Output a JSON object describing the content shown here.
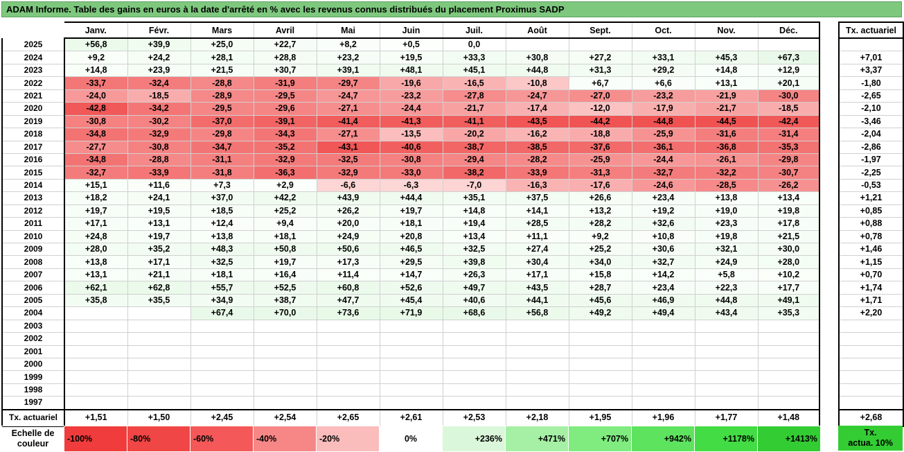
{
  "title": "ADAM Informe. Table des gains en euros à la date d'arrêté en % avec les revenus connus distribués du placement Proximus SADP",
  "months": [
    "Janv.",
    "Févr.",
    "Mars",
    "Avril",
    "Mai",
    "Juin",
    "Juil.",
    "Août",
    "Sept.",
    "Oct.",
    "Nov.",
    "Déc."
  ],
  "tx_header": "Tx. actuariel",
  "rows": [
    {
      "year": "2025",
      "vals": [
        "+56,8",
        "+39,9",
        "+25,0",
        "+22,7",
        "+8,2",
        "+0,5",
        "0,0",
        "",
        "",
        "",
        "",
        ""
      ],
      "tx": ""
    },
    {
      "year": "2024",
      "vals": [
        "+9,2",
        "+24,2",
        "+28,1",
        "+28,8",
        "+23,2",
        "+19,5",
        "+33,3",
        "+30,8",
        "+27,2",
        "+33,1",
        "+45,3",
        "+67,3"
      ],
      "tx": "+7,01"
    },
    {
      "year": "2023",
      "vals": [
        "+14,8",
        "+23,9",
        "+21,5",
        "+30,7",
        "+39,1",
        "+48,1",
        "+45,1",
        "+44,8",
        "+31,3",
        "+29,2",
        "+14,8",
        "+12,9"
      ],
      "tx": "+3,37"
    },
    {
      "year": "2022",
      "vals": [
        "-33,7",
        "-32,4",
        "-28,8",
        "-31,9",
        "-29,7",
        "-19,6",
        "-16,5",
        "-10,8",
        "+6,7",
        "+6,6",
        "+13,1",
        "+20,1"
      ],
      "tx": "-1,80"
    },
    {
      "year": "2021",
      "vals": [
        "-24,0",
        "-18,5",
        "-28,9",
        "-29,5",
        "-24,7",
        "-23,2",
        "-27,8",
        "-24,7",
        "-27,0",
        "-23,2",
        "-21,9",
        "-30,0"
      ],
      "tx": "-2,65"
    },
    {
      "year": "2020",
      "vals": [
        "-42,8",
        "-34,2",
        "-29,5",
        "-29,6",
        "-27,1",
        "-24,4",
        "-21,7",
        "-17,4",
        "-12,0",
        "-17,9",
        "-21,7",
        "-18,5"
      ],
      "tx": "-2,10"
    },
    {
      "year": "2019",
      "vals": [
        "-30,8",
        "-30,2",
        "-37,0",
        "-39,1",
        "-41,4",
        "-41,3",
        "-41,1",
        "-43,5",
        "-44,2",
        "-44,8",
        "-44,5",
        "-42,4"
      ],
      "tx": "-3,46"
    },
    {
      "year": "2018",
      "vals": [
        "-34,8",
        "-32,9",
        "-29,8",
        "-34,3",
        "-27,1",
        "-13,5",
        "-20,2",
        "-16,2",
        "-18,8",
        "-25,9",
        "-31,6",
        "-31,4"
      ],
      "tx": "-2,04"
    },
    {
      "year": "2017",
      "vals": [
        "-27,7",
        "-30,8",
        "-34,7",
        "-35,2",
        "-43,1",
        "-40,6",
        "-38,7",
        "-38,5",
        "-37,6",
        "-36,1",
        "-36,8",
        "-35,3"
      ],
      "tx": "-2,86"
    },
    {
      "year": "2016",
      "vals": [
        "-34,8",
        "-28,8",
        "-31,1",
        "-32,9",
        "-32,5",
        "-30,8",
        "-29,4",
        "-28,2",
        "-25,9",
        "-24,4",
        "-26,1",
        "-29,8"
      ],
      "tx": "-1,97"
    },
    {
      "year": "2015",
      "vals": [
        "-32,7",
        "-33,9",
        "-31,8",
        "-36,3",
        "-32,9",
        "-33,0",
        "-38,2",
        "-33,9",
        "-31,3",
        "-32,7",
        "-32,2",
        "-30,7"
      ],
      "tx": "-2,25"
    },
    {
      "year": "2014",
      "vals": [
        "+15,1",
        "+11,6",
        "+7,3",
        "+2,9",
        "-6,6",
        "-6,3",
        "-7,0",
        "-16,3",
        "-17,6",
        "-24,6",
        "-28,5",
        "-26,2"
      ],
      "tx": "-0,53"
    },
    {
      "year": "2013",
      "vals": [
        "+18,2",
        "+24,1",
        "+37,0",
        "+42,2",
        "+43,9",
        "+44,4",
        "+35,1",
        "+37,5",
        "+26,6",
        "+23,4",
        "+13,8",
        "+13,4"
      ],
      "tx": "+1,21"
    },
    {
      "year": "2012",
      "vals": [
        "+19,7",
        "+19,5",
        "+18,5",
        "+25,2",
        "+26,2",
        "+19,7",
        "+14,8",
        "+14,1",
        "+13,2",
        "+19,2",
        "+19,0",
        "+19,8"
      ],
      "tx": "+0,85"
    },
    {
      "year": "2011",
      "vals": [
        "+17,1",
        "+13,1",
        "+12,4",
        "+9,4",
        "+20,0",
        "+18,1",
        "+19,4",
        "+28,5",
        "+28,2",
        "+32,6",
        "+23,3",
        "+17,8"
      ],
      "tx": "+0,88"
    },
    {
      "year": "2010",
      "vals": [
        "+24,8",
        "+19,7",
        "+13,8",
        "+18,1",
        "+24,9",
        "+20,8",
        "+13,4",
        "+11,1",
        "+9,2",
        "+10,8",
        "+19,8",
        "+21,5"
      ],
      "tx": "+0,78"
    },
    {
      "year": "2009",
      "vals": [
        "+28,0",
        "+35,2",
        "+48,3",
        "+50,8",
        "+50,6",
        "+46,5",
        "+32,5",
        "+27,4",
        "+25,2",
        "+30,6",
        "+32,1",
        "+30,0"
      ],
      "tx": "+1,46"
    },
    {
      "year": "2008",
      "vals": [
        "+13,8",
        "+17,1",
        "+32,5",
        "+19,7",
        "+17,3",
        "+29,5",
        "+39,8",
        "+30,4",
        "+34,0",
        "+32,7",
        "+24,9",
        "+28,0"
      ],
      "tx": "+1,15"
    },
    {
      "year": "2007",
      "vals": [
        "+13,1",
        "+21,1",
        "+18,1",
        "+16,4",
        "+11,4",
        "+14,7",
        "+26,3",
        "+17,1",
        "+15,8",
        "+14,2",
        "+5,8",
        "+10,2"
      ],
      "tx": "+0,70"
    },
    {
      "year": "2006",
      "vals": [
        "+62,1",
        "+62,8",
        "+55,7",
        "+52,5",
        "+60,8",
        "+52,6",
        "+49,7",
        "+43,5",
        "+28,7",
        "+23,4",
        "+22,3",
        "+17,7"
      ],
      "tx": "+1,74"
    },
    {
      "year": "2005",
      "vals": [
        "+35,8",
        "+35,5",
        "+34,9",
        "+38,7",
        "+47,7",
        "+45,4",
        "+40,6",
        "+44,1",
        "+45,6",
        "+46,9",
        "+44,8",
        "+49,1"
      ],
      "tx": "+1,71"
    },
    {
      "year": "2004",
      "vals": [
        "",
        "",
        "+67,4",
        "+70,0",
        "+73,6",
        "+71,9",
        "+68,6",
        "+56,8",
        "+49,2",
        "+49,4",
        "+43,4",
        "+35,3"
      ],
      "tx": "+2,20"
    },
    {
      "year": "2003",
      "vals": [
        "",
        "",
        "",
        "",
        "",
        "",
        "",
        "",
        "",
        "",
        "",
        ""
      ],
      "tx": ""
    },
    {
      "year": "2002",
      "vals": [
        "",
        "",
        "",
        "",
        "",
        "",
        "",
        "",
        "",
        "",
        "",
        ""
      ],
      "tx": ""
    },
    {
      "year": "2001",
      "vals": [
        "",
        "",
        "",
        "",
        "",
        "",
        "",
        "",
        "",
        "",
        "",
        ""
      ],
      "tx": ""
    },
    {
      "year": "2000",
      "vals": [
        "",
        "",
        "",
        "",
        "",
        "",
        "",
        "",
        "",
        "",
        "",
        ""
      ],
      "tx": ""
    },
    {
      "year": "1999",
      "vals": [
        "",
        "",
        "",
        "",
        "",
        "",
        "",
        "",
        "",
        "",
        "",
        ""
      ],
      "tx": ""
    },
    {
      "year": "1998",
      "vals": [
        "",
        "",
        "",
        "",
        "",
        "",
        "",
        "",
        "",
        "",
        "",
        ""
      ],
      "tx": ""
    },
    {
      "year": "1997",
      "vals": [
        "",
        "",
        "",
        "",
        "",
        "",
        "",
        "",
        "",
        "",
        "",
        ""
      ],
      "tx": ""
    }
  ],
  "footer": {
    "label": "Tx. actuariel",
    "vals": [
      "+1,51",
      "+1,50",
      "+2,45",
      "+2,54",
      "+2,65",
      "+2,61",
      "+2,53",
      "+2,18",
      "+1,95",
      "+1,96",
      "+1,77",
      "+1,48"
    ],
    "tx": "+2,68"
  },
  "legend": {
    "label_line1": "Echelle de",
    "label_line2": "couleur",
    "items": [
      {
        "text": "-100%",
        "color": "#f03c3c"
      },
      {
        "text": "-80%",
        "color": "#f04646"
      },
      {
        "text": "-60%",
        "color": "#f45858"
      },
      {
        "text": "-40%",
        "color": "#f78787"
      },
      {
        "text": "-20%",
        "color": "#fbbcbc"
      },
      {
        "text": "0%",
        "color": "#ffffff"
      },
      {
        "text": "+236%",
        "color": "#dbf7db"
      },
      {
        "text": "+471%",
        "color": "#a6f0a6"
      },
      {
        "text": "+707%",
        "color": "#80ec80"
      },
      {
        "text": "+942%",
        "color": "#5ee35e"
      },
      {
        "text": "+1178%",
        "color": "#44dc44"
      },
      {
        "text": "+1413%",
        "color": "#33cc33"
      }
    ],
    "tx_line1": "Tx.",
    "tx_line2": "actua. 10%",
    "tx_color": "#33cc33"
  }
}
